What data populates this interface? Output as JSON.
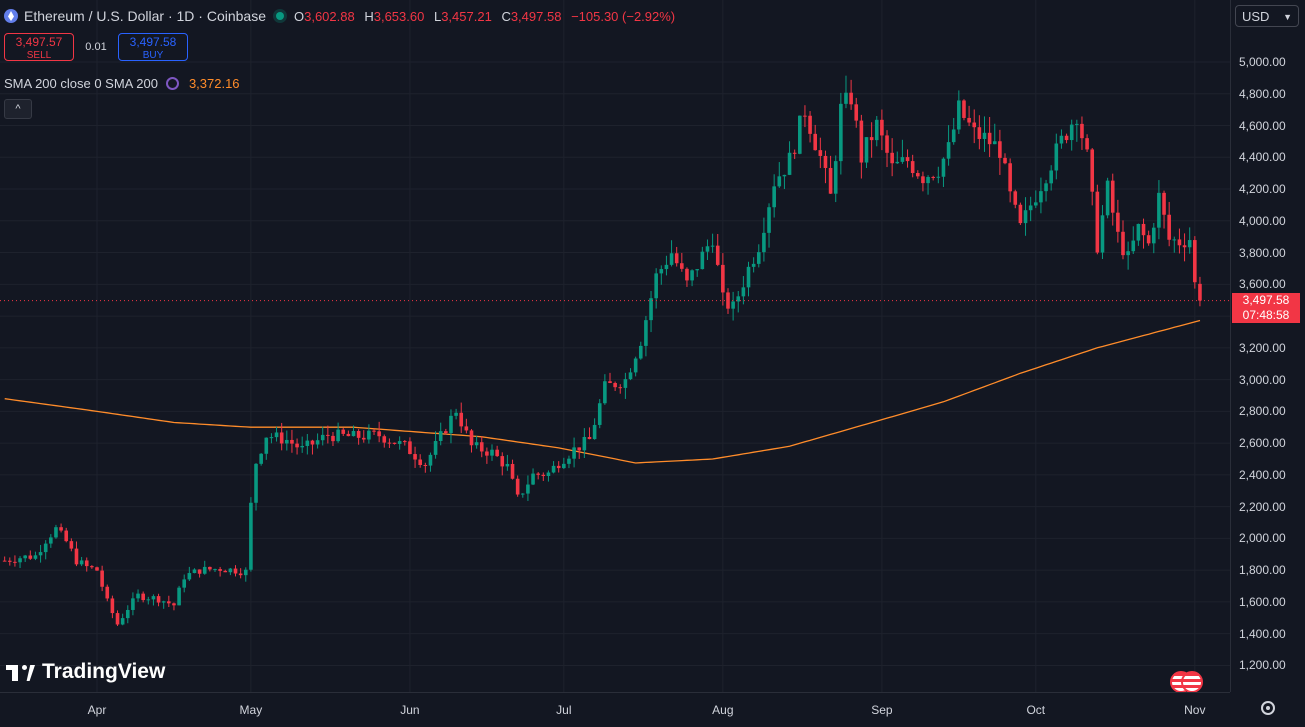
{
  "legend": {
    "symbol": "Ethereum / U.S. Dollar · 1D · Coinbase",
    "ohlc": [
      {
        "key": "O",
        "value": "3,602.88"
      },
      {
        "key": "H",
        "value": "3,653.60"
      },
      {
        "key": "L",
        "value": "3,457.21"
      },
      {
        "key": "C",
        "value": "3,497.58"
      }
    ],
    "change": "−105.30 (−2.92%)"
  },
  "trade": {
    "sell_price": "3,497.57",
    "sell_label": "SELL",
    "spread": "0.01",
    "buy_price": "3,497.58",
    "buy_label": "BUY"
  },
  "indicator": {
    "name": "SMA 200 close 0 SMA 200",
    "value": "3,372.16"
  },
  "currency": "USD",
  "last_price": "3,497.58",
  "countdown": "07:48:58",
  "brand": "TradingView",
  "colors": {
    "up": "#089981",
    "down": "#f23645",
    "sma": "#ff8c2a",
    "background": "#131722",
    "grid": "#1e222d"
  },
  "chart_data": {
    "type": "candlestick",
    "title": "Ethereum / U.S. Dollar · 1D · Coinbase",
    "y_ticks": [
      1200,
      1400,
      1600,
      1800,
      2000,
      2200,
      2400,
      2600,
      2800,
      3000,
      3200,
      3400,
      3600,
      3800,
      4000,
      4200,
      4400,
      4600,
      4800,
      5000
    ],
    "y_tick_labels": [
      "1,200.00",
      "1,400.00",
      "1,600.00",
      "1,800.00",
      "2,000.00",
      "2,200.00",
      "2,400.00",
      "2,600.00",
      "2,800.00",
      "3,000.00",
      "3,200.00",
      "3,400.00",
      "3,600.00",
      "3,800.00",
      "4,000.00",
      "4,200.00",
      "4,400.00",
      "4,600.00",
      "4,800.00",
      "5,000.00"
    ],
    "x_ticks": [
      {
        "label": "Apr",
        "day": 0
      },
      {
        "label": "May",
        "day": 30
      },
      {
        "label": "Jun",
        "day": 61
      },
      {
        "label": "Jul",
        "day": 91
      },
      {
        "label": "Aug",
        "day": 122
      },
      {
        "label": "Sep",
        "day": 153
      },
      {
        "label": "Oct",
        "day": 183
      },
      {
        "label": "Nov",
        "day": 214
      }
    ],
    "ylim": [
      1100,
      5150
    ],
    "price_keypoints": [
      {
        "day": -18,
        "price": 1860
      },
      {
        "day": -15,
        "price": 1880
      },
      {
        "day": -12,
        "price": 1890
      },
      {
        "day": -10,
        "price": 1990
      },
      {
        "day": -8,
        "price": 2060
      },
      {
        "day": -6,
        "price": 1980
      },
      {
        "day": -4,
        "price": 1860
      },
      {
        "day": -2,
        "price": 1820
      },
      {
        "day": 0,
        "price": 1800
      },
      {
        "day": 2,
        "price": 1600
      },
      {
        "day": 4,
        "price": 1460
      },
      {
        "day": 6,
        "price": 1560
      },
      {
        "day": 8,
        "price": 1640
      },
      {
        "day": 12,
        "price": 1620
      },
      {
        "day": 15,
        "price": 1580
      },
      {
        "day": 17,
        "price": 1760
      },
      {
        "day": 20,
        "price": 1800
      },
      {
        "day": 24,
        "price": 1810
      },
      {
        "day": 27,
        "price": 1800
      },
      {
        "day": 29,
        "price": 1790
      },
      {
        "day": 30,
        "price": 2210
      },
      {
        "day": 31,
        "price": 2480
      },
      {
        "day": 33,
        "price": 2650
      },
      {
        "day": 37,
        "price": 2620
      },
      {
        "day": 40,
        "price": 2560
      },
      {
        "day": 45,
        "price": 2650
      },
      {
        "day": 50,
        "price": 2640
      },
      {
        "day": 55,
        "price": 2650
      },
      {
        "day": 60,
        "price": 2580
      },
      {
        "day": 64,
        "price": 2470
      },
      {
        "day": 67,
        "price": 2640
      },
      {
        "day": 70,
        "price": 2810
      },
      {
        "day": 73,
        "price": 2580
      },
      {
        "day": 77,
        "price": 2540
      },
      {
        "day": 80,
        "price": 2450
      },
      {
        "day": 82,
        "price": 2250
      },
      {
        "day": 85,
        "price": 2400
      },
      {
        "day": 88,
        "price": 2410
      },
      {
        "day": 90,
        "price": 2480
      },
      {
        "day": 93,
        "price": 2560
      },
      {
        "day": 96,
        "price": 2620
      },
      {
        "day": 99,
        "price": 2950
      },
      {
        "day": 103,
        "price": 3000
      },
      {
        "day": 106,
        "price": 3250
      },
      {
        "day": 109,
        "price": 3650
      },
      {
        "day": 112,
        "price": 3800
      },
      {
        "day": 115,
        "price": 3600
      },
      {
        "day": 118,
        "price": 3780
      },
      {
        "day": 120,
        "price": 3900
      },
      {
        "day": 122,
        "price": 3500
      },
      {
        "day": 124,
        "price": 3450
      },
      {
        "day": 127,
        "price": 3700
      },
      {
        "day": 129,
        "price": 3850
      },
      {
        "day": 132,
        "price": 4250
      },
      {
        "day": 135,
        "price": 4380
      },
      {
        "day": 138,
        "price": 4700
      },
      {
        "day": 141,
        "price": 4400
      },
      {
        "day": 143,
        "price": 4150
      },
      {
        "day": 145,
        "price": 4700
      },
      {
        "day": 147,
        "price": 4780
      },
      {
        "day": 149,
        "price": 4400
      },
      {
        "day": 152,
        "price": 4600
      },
      {
        "day": 155,
        "price": 4330
      },
      {
        "day": 158,
        "price": 4380
      },
      {
        "day": 161,
        "price": 4280
      },
      {
        "day": 164,
        "price": 4330
      },
      {
        "day": 166,
        "price": 4450
      },
      {
        "day": 168,
        "price": 4700
      },
      {
        "day": 171,
        "price": 4550
      },
      {
        "day": 173,
        "price": 4520
      },
      {
        "day": 176,
        "price": 4450
      },
      {
        "day": 178,
        "price": 4150
      },
      {
        "day": 180,
        "price": 3950
      },
      {
        "day": 182,
        "price": 4100
      },
      {
        "day": 185,
        "price": 4300
      },
      {
        "day": 188,
        "price": 4500
      },
      {
        "day": 191,
        "price": 4680
      },
      {
        "day": 193,
        "price": 4400
      },
      {
        "day": 195,
        "price": 3850
      },
      {
        "day": 197,
        "price": 4200
      },
      {
        "day": 199,
        "price": 3900
      },
      {
        "day": 201,
        "price": 3760
      },
      {
        "day": 203,
        "price": 3950
      },
      {
        "day": 205,
        "price": 3850
      },
      {
        "day": 207,
        "price": 4150
      },
      {
        "day": 209,
        "price": 3880
      },
      {
        "day": 211,
        "price": 3870
      },
      {
        "day": 213,
        "price": 3890
      },
      {
        "day": 214,
        "price": 3600
      },
      {
        "day": 215,
        "price": 3497.58
      }
    ],
    "sma_keypoints": [
      {
        "day": -18,
        "price": 2880
      },
      {
        "day": 0,
        "price": 2800
      },
      {
        "day": 15,
        "price": 2730
      },
      {
        "day": 30,
        "price": 2700
      },
      {
        "day": 50,
        "price": 2700
      },
      {
        "day": 75,
        "price": 2640
      },
      {
        "day": 90,
        "price": 2570
      },
      {
        "day": 105,
        "price": 2475
      },
      {
        "day": 120,
        "price": 2500
      },
      {
        "day": 135,
        "price": 2580
      },
      {
        "day": 150,
        "price": 2720
      },
      {
        "day": 165,
        "price": 2860
      },
      {
        "day": 180,
        "price": 3040
      },
      {
        "day": 195,
        "price": 3200
      },
      {
        "day": 215,
        "price": 3372.16
      }
    ]
  }
}
